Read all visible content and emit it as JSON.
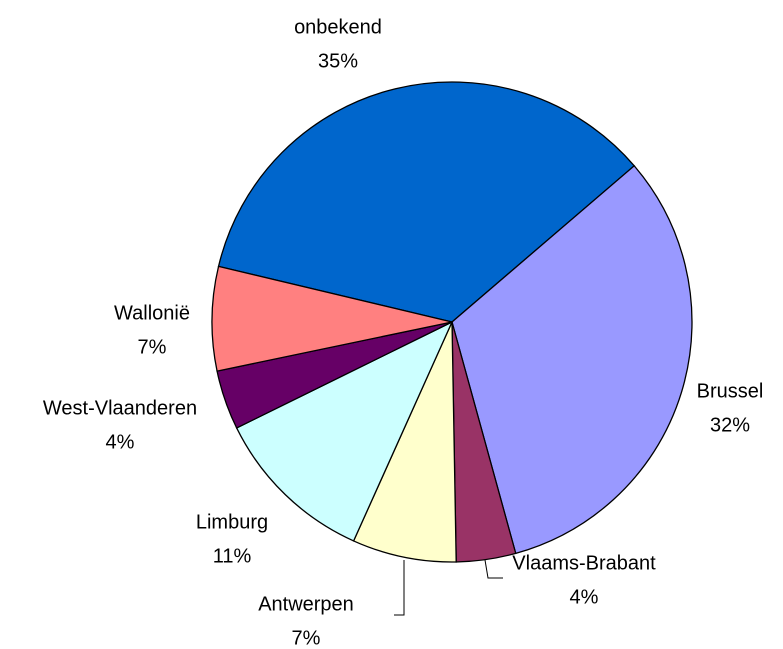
{
  "chart_data": {
    "type": "pie",
    "categories": [
      "onbekend",
      "Brussel",
      "Vlaams-Brabant",
      "Antwerpen",
      "Limburg",
      "West-Vlaanderen",
      "Wallonië"
    ],
    "values": [
      35,
      32,
      4,
      7,
      11,
      4,
      7
    ],
    "value_labels": [
      "35%",
      "32%",
      "4%",
      "7%",
      "11%",
      "4%",
      "7%"
    ],
    "colors": [
      "#0066cc",
      "#9999ff",
      "#993366",
      "#ffffcc",
      "#ccffff",
      "#660066",
      "#ff8080"
    ]
  }
}
